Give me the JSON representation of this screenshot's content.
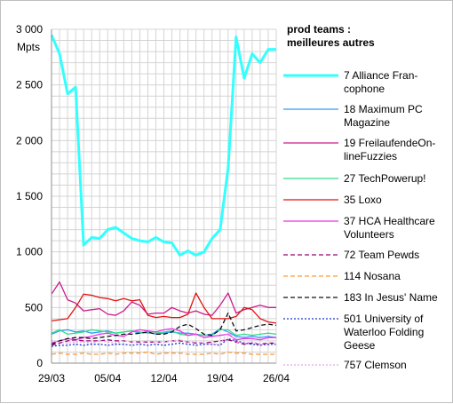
{
  "chart_data": {
    "type": "line",
    "ylabel": "Mpts",
    "ylim": [
      0,
      3000
    ],
    "yticks": [
      "0",
      "500",
      "1 000",
      "1 500",
      "2 000",
      "2 500",
      "3 000"
    ],
    "xticks": [
      "29/03",
      "05/04",
      "12/04",
      "19/04",
      "26/04"
    ],
    "xtick_positions": [
      0,
      7,
      14,
      21,
      28
    ],
    "grid": true,
    "legend_position": "right",
    "legend_title": "prod teams :\nmeilleures autres",
    "x": [
      0,
      1,
      2,
      3,
      4,
      5,
      6,
      7,
      8,
      9,
      10,
      11,
      12,
      13,
      14,
      15,
      16,
      17,
      18,
      19,
      20,
      21,
      22,
      23,
      24,
      25,
      26,
      27,
      28
    ],
    "series": [
      {
        "name": "7 Alliance Francophone",
        "color": "#33ffff",
        "width": 3,
        "dash": "",
        "values": [
          2950,
          2780,
          2420,
          2480,
          1060,
          1130,
          1120,
          1200,
          1220,
          1170,
          1120,
          1100,
          1090,
          1130,
          1090,
          1080,
          970,
          1010,
          970,
          1000,
          1120,
          1200,
          1750,
          2930,
          2560,
          2780,
          2700,
          2820,
          2820
        ]
      },
      {
        "name": "18 Maximum PC Magazine",
        "color": "#3399ff",
        "width": 1.3,
        "dash": "",
        "values": [
          260,
          290,
          300,
          280,
          290,
          270,
          280,
          290,
          270,
          280,
          290,
          270,
          280,
          260,
          270,
          280,
          270,
          270,
          260,
          250,
          260,
          310,
          280,
          240,
          230,
          240,
          230,
          240,
          230
        ]
      },
      {
        "name": "19 FreilaufendeOnlineFuzzies",
        "color": "#cc1a8c",
        "width": 1.3,
        "dash": "",
        "values": [
          620,
          730,
          570,
          540,
          470,
          480,
          490,
          440,
          430,
          470,
          550,
          520,
          440,
          450,
          450,
          500,
          470,
          450,
          470,
          440,
          430,
          520,
          630,
          450,
          480,
          500,
          520,
          500,
          500
        ]
      },
      {
        "name": "27 TechPowerup!",
        "color": "#33dd88",
        "width": 1.3,
        "dash": "",
        "values": [
          270,
          300,
          260,
          270,
          280,
          300,
          290,
          280,
          270,
          280,
          290,
          280,
          270,
          270,
          280,
          290,
          260,
          250,
          260,
          250,
          250,
          300,
          300,
          250,
          260,
          250,
          260,
          270,
          260
        ]
      },
      {
        "name": "35 Loxo",
        "color": "#e01414",
        "width": 1.3,
        "dash": "",
        "values": [
          380,
          390,
          400,
          500,
          620,
          610,
          590,
          580,
          560,
          580,
          560,
          570,
          430,
          410,
          420,
          410,
          410,
          440,
          630,
          500,
          400,
          400,
          400,
          420,
          500,
          480,
          400,
          370,
          360
        ]
      },
      {
        "name": "37 HCA Healthcare Volunteers",
        "color": "#ee33ee",
        "width": 1.3,
        "dash": "",
        "values": [
          180,
          200,
          220,
          210,
          230,
          240,
          260,
          270,
          250,
          240,
          280,
          300,
          290,
          280,
          300,
          310,
          290,
          250,
          260,
          230,
          240,
          250,
          260,
          210,
          220,
          220,
          210,
          230,
          230
        ]
      },
      {
        "name": "72 Team Pewds",
        "color": "#990077",
        "width": 1.3,
        "dash": "5,3",
        "values": [
          160,
          180,
          200,
          210,
          200,
          200,
          200,
          210,
          200,
          200,
          190,
          190,
          190,
          190,
          190,
          200,
          200,
          190,
          180,
          180,
          190,
          200,
          210,
          190,
          170,
          180,
          170,
          180,
          180
        ]
      },
      {
        "name": "114 Nosana",
        "color": "#ff9933",
        "width": 1.3,
        "dash": "5,3",
        "values": [
          80,
          90,
          80,
          80,
          90,
          80,
          80,
          90,
          80,
          90,
          90,
          90,
          100,
          80,
          90,
          90,
          90,
          80,
          80,
          80,
          90,
          80,
          100,
          90,
          90,
          80,
          80,
          80,
          80
        ]
      },
      {
        "name": "183 In Jesus' Name",
        "color": "#111111",
        "width": 1.3,
        "dash": "5,3",
        "values": [
          170,
          200,
          220,
          230,
          230,
          220,
          230,
          240,
          250,
          260,
          260,
          270,
          280,
          260,
          260,
          280,
          330,
          350,
          310,
          260,
          250,
          300,
          450,
          290,
          300,
          320,
          340,
          350,
          340
        ]
      },
      {
        "name": "501 University of Waterloo Folding Geese",
        "color": "#1a33cc",
        "width": 1.3,
        "dash": "2,2",
        "values": [
          150,
          160,
          160,
          170,
          160,
          170,
          170,
          160,
          170,
          170,
          160,
          170,
          160,
          170,
          160,
          170,
          180,
          170,
          160,
          170,
          170,
          160,
          220,
          200,
          180,
          170,
          160,
          170,
          170
        ]
      },
      {
        "name": "757 Clemson",
        "color": "#e6a3e6",
        "width": 1.3,
        "dash": "2,2",
        "values": [
          200,
          190,
          180,
          190,
          190,
          180,
          200,
          190,
          180,
          200,
          190,
          180,
          200,
          190,
          190,
          200,
          210,
          190,
          190,
          180,
          170,
          170,
          280,
          190,
          180,
          190,
          170,
          160,
          170
        ]
      }
    ],
    "legend_labels": [
      [
        "7 Alliance Fran-",
        "cophone"
      ],
      [
        "18 Maximum PC",
        "Magazine"
      ],
      [
        "19 FreilaufendeOn-",
        "lineFuzzies"
      ],
      [
        "27 TechPowerup!"
      ],
      [
        "35 Loxo"
      ],
      [
        "37 HCA Healthcare",
        "Volunteers"
      ],
      [
        "72 Team Pewds"
      ],
      [
        "114 Nosana"
      ],
      [
        "183 In Jesus' Name"
      ],
      [
        "501 University of",
        "Waterloo Folding",
        "Geese"
      ],
      [
        "757 Clemson"
      ]
    ]
  }
}
